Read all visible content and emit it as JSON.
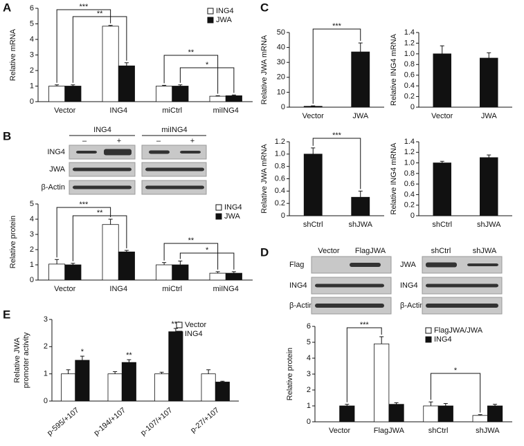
{
  "panel_labels": [
    "A",
    "B",
    "C",
    "D",
    "E"
  ],
  "blots": {
    "B": {
      "groups": [
        "ING4",
        "miING4"
      ],
      "lanes": [
        "–",
        "+",
        "–",
        "+"
      ],
      "rows": [
        "ING4",
        "JWA",
        "β-Actin"
      ]
    },
    "D": {
      "left": {
        "lanes": [
          "Vector",
          "FlagJWA"
        ],
        "rows": [
          "Flag",
          "ING4",
          "β-Actin"
        ]
      },
      "right": {
        "lanes": [
          "shCtrl",
          "shJWA"
        ],
        "rows": [
          "JWA",
          "ING4",
          "β-Actin"
        ]
      }
    }
  },
  "chart_data": [
    {
      "type": "bar",
      "ylabel": "Relative mRNA",
      "categories": [
        "Vector",
        "ING4",
        "miCtrl",
        "miING4"
      ],
      "series": [
        {
          "name": "ING4",
          "color": "#ffffff",
          "values": [
            1,
            4.85,
            1,
            0.35
          ],
          "errors": [
            0.08,
            0.05,
            0.05,
            0.03
          ]
        },
        {
          "name": "JWA",
          "color": "#111111",
          "values": [
            1,
            2.3,
            1,
            0.38
          ],
          "errors": [
            0.08,
            0.2,
            0.08,
            0.05
          ]
        }
      ],
      "ylim": [
        0,
        6
      ],
      "yticks": [
        0,
        1,
        2,
        3,
        4,
        5,
        6
      ],
      "annotations": [
        "***",
        "**",
        "**",
        "*"
      ]
    },
    {
      "type": "bar",
      "ylabel": "Relative protein",
      "categories": [
        "Vector",
        "ING4",
        "miCtrl",
        "miING4"
      ],
      "series": [
        {
          "name": "ING4",
          "color": "#ffffff",
          "values": [
            1.05,
            3.65,
            1,
            0.45
          ],
          "errors": [
            0.3,
            0.35,
            0.15,
            0.1
          ]
        },
        {
          "name": "JWA",
          "color": "#111111",
          "values": [
            1,
            1.85,
            1,
            0.45
          ],
          "errors": [
            0.1,
            0.1,
            0.25,
            0.1
          ]
        }
      ],
      "ylim": [
        0,
        5
      ],
      "yticks": [
        0,
        1,
        2,
        3,
        4,
        5
      ],
      "annotations": [
        "***",
        "**",
        "**",
        "*"
      ]
    },
    {
      "type": "bar",
      "ylabel": "Relative JWA mRNA",
      "categories": [
        "Vector",
        "JWA"
      ],
      "color": "#111111",
      "values": [
        0.6,
        37
      ],
      "errors": [
        0.3,
        6
      ],
      "ylim": [
        0,
        50
      ],
      "yticks": [
        0,
        10,
        20,
        30,
        40,
        50
      ],
      "annotations": [
        "***"
      ]
    },
    {
      "type": "bar",
      "ylabel": "Relative ING4 mRNA",
      "categories": [
        "Vector",
        "JWA"
      ],
      "color": "#111111",
      "values": [
        1.0,
        0.92
      ],
      "errors": [
        0.15,
        0.1
      ],
      "ylim": [
        0,
        1.4
      ],
      "yticks": [
        0,
        0.2,
        0.4,
        0.6,
        0.8,
        {
          "value": 1,
          "label": "1.0"
        },
        1.2,
        1.4
      ]
    },
    {
      "type": "bar",
      "ylabel": "Relative JWA mRNA",
      "categories": [
        "shCtrl",
        "shJWA"
      ],
      "color": "#111111",
      "values": [
        1.0,
        0.3
      ],
      "errors": [
        0.1,
        0.1
      ],
      "ylim": [
        0,
        1.2
      ],
      "yticks": [
        0,
        0.2,
        0.4,
        0.6,
        0.8,
        {
          "value": 1,
          "label": "1.0"
        },
        1.2
      ],
      "annotations": [
        "***"
      ]
    },
    {
      "type": "bar",
      "ylabel": "Relative ING4 mRNA",
      "categories": [
        "shCtrl",
        "shJWA"
      ],
      "color": "#111111",
      "values": [
        1.0,
        1.1
      ],
      "errors": [
        0.03,
        0.05
      ],
      "ylim": [
        0,
        1.4
      ],
      "yticks": [
        0,
        0.2,
        0.4,
        0.6,
        0.8,
        {
          "value": 1,
          "label": "1.0"
        },
        1.2,
        1.4
      ]
    },
    {
      "type": "bar",
      "ylabel": "Relative protein",
      "categories": [
        "Vector",
        "FlagJWA",
        "shCtrl",
        "shJWA"
      ],
      "series": [
        {
          "name": "FlagJWA/JWA",
          "color": "#ffffff",
          "values": [
            0,
            4.9,
            1,
            0.4
          ],
          "errors": [
            0,
            0.45,
            0.25,
            0.05
          ]
        },
        {
          "name": "ING4",
          "color": "#111111",
          "values": [
            1,
            1.1,
            1,
            1
          ],
          "errors": [
            0.1,
            0.1,
            0.15,
            0.1
          ]
        }
      ],
      "ylim": [
        0,
        6
      ],
      "yticks": [
        0,
        1,
        2,
        3,
        4,
        5,
        6
      ],
      "annotations": [
        "***",
        "*"
      ]
    },
    {
      "type": "bar",
      "ylabel": [
        "Relative JWA",
        "promoter activity"
      ],
      "categories": [
        "p-595/+107",
        "p-194/+107",
        "p-107/+107",
        "p-27/+107"
      ],
      "series": [
        {
          "name": "Vector",
          "color": "#ffffff",
          "values": [
            1,
            1,
            1,
            1
          ],
          "errors": [
            0.15,
            0.08,
            0.06,
            0.15
          ]
        },
        {
          "name": "ING4",
          "color": "#111111",
          "values": [
            1.5,
            1.42,
            2.55,
            0.7
          ],
          "errors": [
            0.15,
            0.1,
            0.12,
            0.03
          ]
        }
      ],
      "ylim": [
        0,
        3
      ],
      "yticks": [
        0,
        1,
        2,
        3
      ],
      "annotations": [
        "*",
        "**",
        "***"
      ]
    }
  ]
}
